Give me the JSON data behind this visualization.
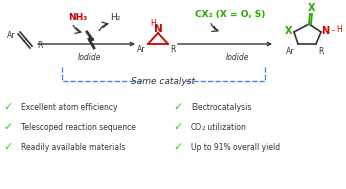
{
  "bg_color": "#ffffff",
  "check_color": "#33cc33",
  "left_bullets": [
    "Excellent atom efficiency",
    "Telescoped reaction sequence",
    "Readily available materials"
  ],
  "right_bullets_plain": [
    "Electrocatalysis",
    "CO2 utilization",
    "Up to 91% overall yield"
  ],
  "same_catalyst_text": "Same catalyst",
  "iodide1_text": "Iodide",
  "iodide2_text": "Iodide",
  "nh3_text": "NH₃",
  "h2_text": "H₂",
  "cx2_text": "CX₂ (X = O, S)",
  "red_color": "#cc0000",
  "green_color": "#22aa00",
  "black_color": "#333333",
  "dashed_color": "#4488ee",
  "figsize": [
    3.46,
    1.89
  ],
  "dpi": 100
}
